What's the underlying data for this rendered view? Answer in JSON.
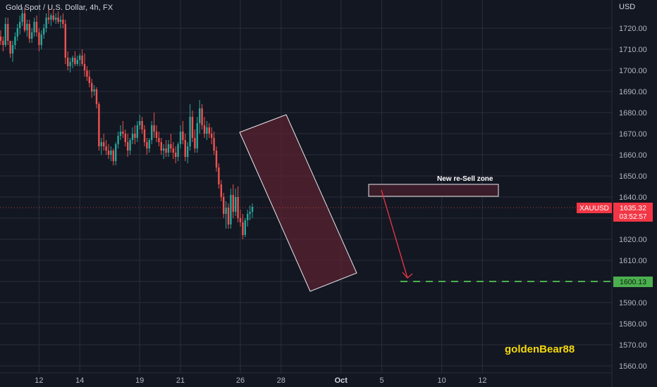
{
  "title": "Gold Spot / U.S. Dollar, 4h, FX",
  "currency": "USD",
  "chart_data": {
    "type": "candlestick",
    "symbol": "XAUUSD",
    "timeframe": "4h",
    "ylim": [
      1557,
      1737
    ],
    "y_ticks": [
      1720,
      1710,
      1700,
      1690,
      1680,
      1670,
      1660,
      1650,
      1640,
      1630,
      1620,
      1610,
      1600,
      1590,
      1580,
      1570,
      1560
    ],
    "y_tick_labels": [
      "1720.00",
      "1710.00",
      "1700.00",
      "1690.00",
      "1680.00",
      "1670.00",
      "1660.00",
      "1650.00",
      "1640.00",
      "1630.00",
      "1620.00",
      "1610.00",
      "1600.00",
      "1590.00",
      "1580.00",
      "1570.00",
      "1560.00"
    ],
    "x_ticks": [
      {
        "label": "12",
        "index": 16
      },
      {
        "label": "14",
        "index": 33
      },
      {
        "label": "19",
        "index": 58
      },
      {
        "label": "21",
        "index": 75
      },
      {
        "label": "26",
        "index": 100
      },
      {
        "label": "28",
        "index": 117
      },
      {
        "label": "Oct",
        "index": 142
      },
      {
        "label": "5",
        "index": 159
      },
      {
        "label": "10",
        "index": 184
      },
      {
        "label": "12",
        "index": 201
      }
    ],
    "candles": [
      [
        1716,
        1719,
        1712,
        1714
      ],
      [
        1714,
        1716,
        1709,
        1712
      ],
      [
        1712,
        1725,
        1711,
        1722
      ],
      [
        1722,
        1725,
        1712,
        1714
      ],
      [
        1714,
        1714,
        1706,
        1708
      ],
      [
        1708,
        1714,
        1704,
        1712
      ],
      [
        1712,
        1718,
        1710,
        1716
      ],
      [
        1716,
        1722,
        1714,
        1720
      ],
      [
        1720,
        1726,
        1717,
        1723
      ],
      [
        1723,
        1730,
        1721,
        1727
      ],
      [
        1727,
        1730,
        1718,
        1719
      ],
      [
        1719,
        1724,
        1716,
        1722
      ],
      [
        1722,
        1724,
        1713,
        1715
      ],
      [
        1715,
        1720,
        1713,
        1718
      ],
      [
        1718,
        1725,
        1716,
        1723
      ],
      [
        1723,
        1726,
        1716,
        1718
      ],
      [
        1718,
        1720,
        1709,
        1712
      ],
      [
        1712,
        1719,
        1710,
        1717
      ],
      [
        1717,
        1722,
        1715,
        1720
      ],
      [
        1720,
        1727,
        1718,
        1725
      ],
      [
        1725,
        1730,
        1722,
        1724
      ],
      [
        1724,
        1727,
        1721,
        1726
      ],
      [
        1726,
        1729,
        1723,
        1724
      ],
      [
        1724,
        1727,
        1722,
        1725
      ],
      [
        1725,
        1728,
        1722,
        1723
      ],
      [
        1723,
        1726,
        1720,
        1724
      ],
      [
        1724,
        1727,
        1720,
        1722
      ],
      [
        1722,
        1724,
        1703,
        1706
      ],
      [
        1706,
        1709,
        1700,
        1702
      ],
      [
        1702,
        1706,
        1699,
        1704
      ],
      [
        1704,
        1707,
        1701,
        1706
      ],
      [
        1706,
        1709,
        1702,
        1703
      ],
      [
        1703,
        1707,
        1702,
        1705
      ],
      [
        1705,
        1708,
        1702,
        1707
      ],
      [
        1707,
        1710,
        1702,
        1703
      ],
      [
        1703,
        1708,
        1697,
        1700
      ],
      [
        1700,
        1702,
        1695,
        1697
      ],
      [
        1697,
        1700,
        1692,
        1694
      ],
      [
        1694,
        1696,
        1687,
        1690
      ],
      [
        1690,
        1693,
        1688,
        1691
      ],
      [
        1691,
        1692,
        1682,
        1684
      ],
      [
        1684,
        1685,
        1662,
        1664
      ],
      [
        1664,
        1668,
        1660,
        1666
      ],
      [
        1666,
        1670,
        1662,
        1664
      ],
      [
        1664,
        1667,
        1660,
        1662
      ],
      [
        1662,
        1665,
        1658,
        1660
      ],
      [
        1660,
        1664,
        1657,
        1662
      ],
      [
        1662,
        1663,
        1655,
        1657
      ],
      [
        1657,
        1666,
        1655,
        1665
      ],
      [
        1665,
        1671,
        1663,
        1669
      ],
      [
        1669,
        1674,
        1667,
        1671
      ],
      [
        1671,
        1676,
        1668,
        1670
      ],
      [
        1670,
        1672,
        1664,
        1666
      ],
      [
        1666,
        1670,
        1659,
        1662
      ],
      [
        1662,
        1668,
        1660,
        1667
      ],
      [
        1667,
        1673,
        1665,
        1670
      ],
      [
        1670,
        1674,
        1665,
        1668
      ],
      [
        1668,
        1676,
        1666,
        1674
      ],
      [
        1674,
        1679,
        1672,
        1676
      ],
      [
        1676,
        1678,
        1670,
        1672
      ],
      [
        1672,
        1674,
        1664,
        1666
      ],
      [
        1666,
        1668,
        1660,
        1663
      ],
      [
        1663,
        1668,
        1661,
        1667
      ],
      [
        1667,
        1676,
        1665,
        1674
      ],
      [
        1674,
        1680,
        1668,
        1671
      ],
      [
        1671,
        1674,
        1666,
        1668
      ],
      [
        1668,
        1671,
        1664,
        1666
      ],
      [
        1666,
        1668,
        1660,
        1662
      ],
      [
        1662,
        1665,
        1658,
        1663
      ],
      [
        1663,
        1667,
        1659,
        1661
      ],
      [
        1661,
        1667,
        1659,
        1665
      ],
      [
        1665,
        1670,
        1661,
        1663
      ],
      [
        1663,
        1666,
        1658,
        1661
      ],
      [
        1661,
        1664,
        1656,
        1659
      ],
      [
        1659,
        1666,
        1657,
        1665
      ],
      [
        1665,
        1674,
        1663,
        1671
      ],
      [
        1671,
        1676,
        1665,
        1667
      ],
      [
        1667,
        1670,
        1657,
        1659
      ],
      [
        1659,
        1666,
        1656,
        1664
      ],
      [
        1664,
        1684,
        1662,
        1678
      ],
      [
        1678,
        1681,
        1666,
        1668
      ],
      [
        1668,
        1672,
        1661,
        1663
      ],
      [
        1663,
        1678,
        1661,
        1675
      ],
      [
        1675,
        1686,
        1670,
        1682
      ],
      [
        1682,
        1684,
        1672,
        1674
      ],
      [
        1674,
        1678,
        1668,
        1670
      ],
      [
        1670,
        1676,
        1667,
        1673
      ],
      [
        1673,
        1675,
        1668,
        1670
      ],
      [
        1670,
        1673,
        1665,
        1668
      ],
      [
        1668,
        1671,
        1660,
        1662
      ],
      [
        1662,
        1664,
        1652,
        1654
      ],
      [
        1654,
        1656,
        1644,
        1646
      ],
      [
        1646,
        1648,
        1638,
        1640
      ],
      [
        1640,
        1642,
        1630,
        1632
      ],
      [
        1632,
        1638,
        1625,
        1635
      ],
      [
        1635,
        1637,
        1625,
        1627
      ],
      [
        1627,
        1644,
        1625,
        1641
      ],
      [
        1641,
        1646,
        1630,
        1633
      ],
      [
        1633,
        1644,
        1631,
        1640
      ],
      [
        1640,
        1645,
        1628,
        1630
      ],
      [
        1630,
        1634,
        1626,
        1628
      ],
      [
        1628,
        1632,
        1620,
        1622
      ],
      [
        1622,
        1630,
        1621,
        1629
      ],
      [
        1629,
        1634,
        1626,
        1632
      ],
      [
        1632,
        1636,
        1629,
        1633
      ],
      [
        1633,
        1637,
        1630,
        1635.32
      ]
    ],
    "last_price": {
      "symbol": "XAUUSD",
      "price": "1635.32",
      "countdown": "03:52:57"
    },
    "target": {
      "price": "1600.13"
    },
    "annotations": {
      "zone_label": "New re-Sell zone",
      "watermark": "goldenBear88"
    },
    "colors": {
      "up": "#26a69a",
      "down": "#ef5350",
      "background": "#131722",
      "grid": "#2a2e39",
      "axis_text": "#b2b5be",
      "target": "#4caf50",
      "channel_fill": "#5c2231",
      "watermark": "#f5d90a"
    }
  }
}
